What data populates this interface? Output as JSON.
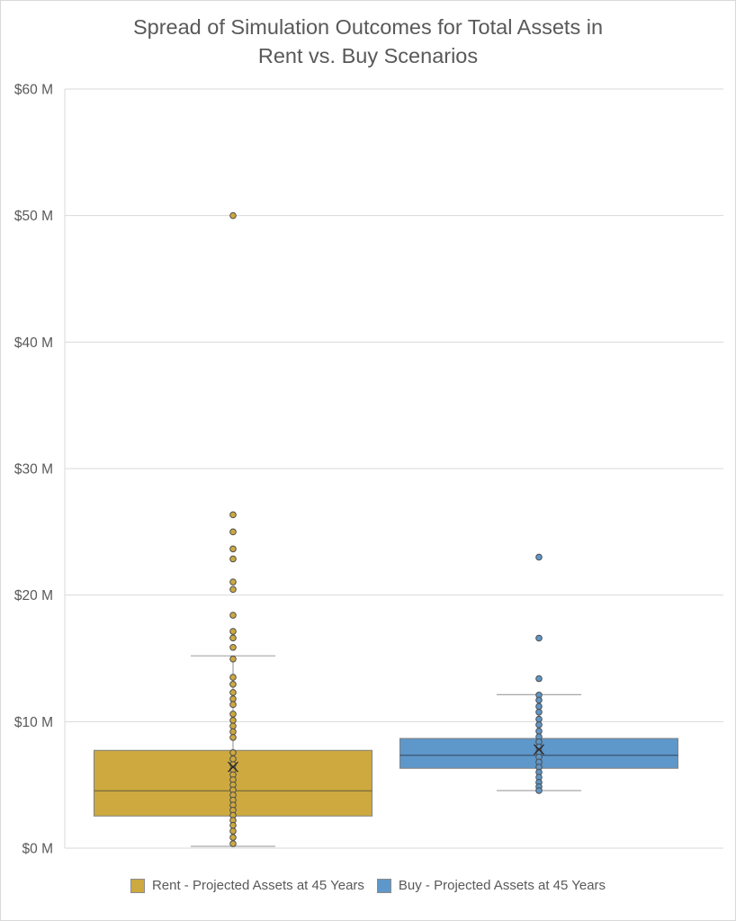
{
  "title_lines": [
    "Spread of Simulation Outcomes for Total Assets in",
    "Rent vs. Buy Scenarios"
  ],
  "chart_data": {
    "type": "box",
    "title": "Spread of Simulation Outcomes for Total Assets in Rent vs. Buy Scenarios",
    "xlabel": "",
    "ylabel": "",
    "ylim": [
      0,
      60
    ],
    "y_unit": "$M",
    "yticks": [
      0,
      10,
      20,
      30,
      40,
      50,
      60
    ],
    "ytick_labels": [
      "$0 M",
      "$10 M",
      "$20 M",
      "$30 M",
      "$40 M",
      "$50 M",
      "$60 M"
    ],
    "grid": true,
    "legend_position": "bottom",
    "series": [
      {
        "name": "Rent - Projected Assets at 45 Years",
        "color": "#CDA93F",
        "min": 0.14,
        "q1": 2.54,
        "median": 4.53,
        "q3": 7.73,
        "max_whisker": 15.2,
        "mean": 6.42,
        "outliers": [
          50.0,
          26.35,
          25.0,
          23.65,
          22.86,
          21.04,
          20.45,
          18.41,
          17.13,
          16.61,
          15.87
        ],
        "inner_points": [
          14.95,
          13.5,
          12.95,
          12.3,
          11.8,
          11.35,
          10.6,
          10.1,
          9.65,
          9.2,
          8.75,
          7.55,
          7.05,
          6.6,
          6.2,
          5.8,
          5.4,
          5.0,
          4.6,
          4.2,
          3.8,
          3.4,
          3.0,
          2.6,
          2.2,
          1.8,
          1.35,
          0.85,
          0.35
        ]
      },
      {
        "name": "Buy - Projected Assets at 45 Years",
        "color": "#5E97C9",
        "min": 4.55,
        "q1": 6.31,
        "median": 7.34,
        "q3": 8.67,
        "max_whisker": 12.13,
        "mean": 7.8,
        "outliers": [
          23.0,
          16.6,
          13.4
        ],
        "inner_points": [
          12.1,
          11.7,
          11.2,
          10.75,
          10.2,
          9.75,
          9.25,
          8.8,
          8.4,
          8.0,
          7.6,
          7.2,
          6.8,
          6.4,
          6.0,
          5.6,
          5.2,
          4.85,
          4.55
        ]
      }
    ]
  },
  "legend": {
    "items": [
      {
        "label": "Rent - Projected Assets at 45 Years",
        "color": "#CDA93F"
      },
      {
        "label": "Buy - Projected Assets at 45 Years",
        "color": "#5E97C9"
      }
    ]
  }
}
